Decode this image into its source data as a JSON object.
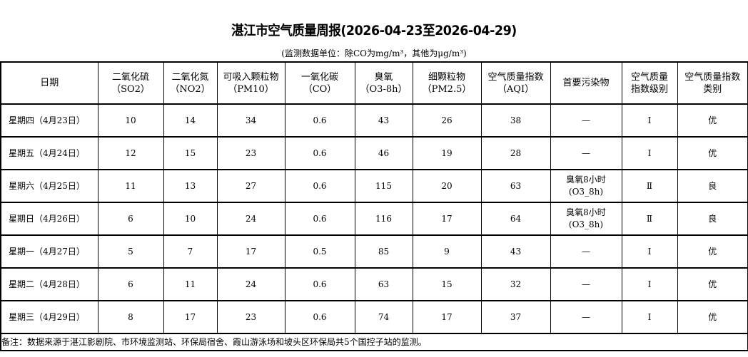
{
  "title": "湛江市空气质量周报(2026-04-23至2026-04-29)",
  "unit_note": "(监测数据单位：除CO为mg/m³，其他为μg/m³)",
  "headers": [
    {
      "l1": "日期",
      "l2": ""
    },
    {
      "l1": "二氧化硫",
      "l2": "（SO2）"
    },
    {
      "l1": "二氧化氮",
      "l2": "（NO2）"
    },
    {
      "l1": "可吸入颗粒物",
      "l2": "（PM10）"
    },
    {
      "l1": "一氧化碳",
      "l2": "（CO）"
    },
    {
      "l1": "臭氧",
      "l2": "（O3-8h）"
    },
    {
      "l1": "细颗粒物",
      "l2": "（PM2.5）"
    },
    {
      "l1": "空气质量指数",
      "l2": "（AQI）"
    },
    {
      "l1": "首要污染物",
      "l2": ""
    },
    {
      "l1": "空气质量",
      "l2": "指数级别"
    },
    {
      "l1": "空气质量指数",
      "l2": "类别"
    }
  ],
  "rows": [
    [
      "星期四（4月23日）",
      "10",
      "14",
      "34",
      "0.6",
      "43",
      "26",
      "38",
      "—",
      "Ⅰ",
      "优"
    ],
    [
      "星期五（4月24日）",
      "12",
      "15",
      "23",
      "0.6",
      "46",
      "19",
      "28",
      "—",
      "Ⅰ",
      "优"
    ],
    [
      "星期六（4月25日）",
      "11",
      "13",
      "27",
      "0.6",
      "115",
      "20",
      "63",
      "臭氧8小时\n(O3_8h)",
      "Ⅱ",
      "良"
    ],
    [
      "星期日（4月26日）",
      "6",
      "10",
      "24",
      "0.6",
      "116",
      "17",
      "64",
      "臭氧8小时\n(O3_8h)",
      "Ⅱ",
      "良"
    ],
    [
      "星期一（4月27日）",
      "5",
      "7",
      "17",
      "0.5",
      "85",
      "9",
      "43",
      "—",
      "Ⅰ",
      "优"
    ],
    [
      "星期二（4月28日）",
      "6",
      "11",
      "24",
      "0.6",
      "63",
      "15",
      "32",
      "—",
      "Ⅰ",
      "优"
    ],
    [
      "星期三（4月29日）",
      "8",
      "17",
      "23",
      "0.6",
      "74",
      "17",
      "37",
      "—",
      "Ⅰ",
      "优"
    ]
  ],
  "footnote": "备注：数据来源于湛江影剧院、市环境监测站、环保局宿舍、霞山游泳场和坡头区环保局共5个国控子站的监测。"
}
